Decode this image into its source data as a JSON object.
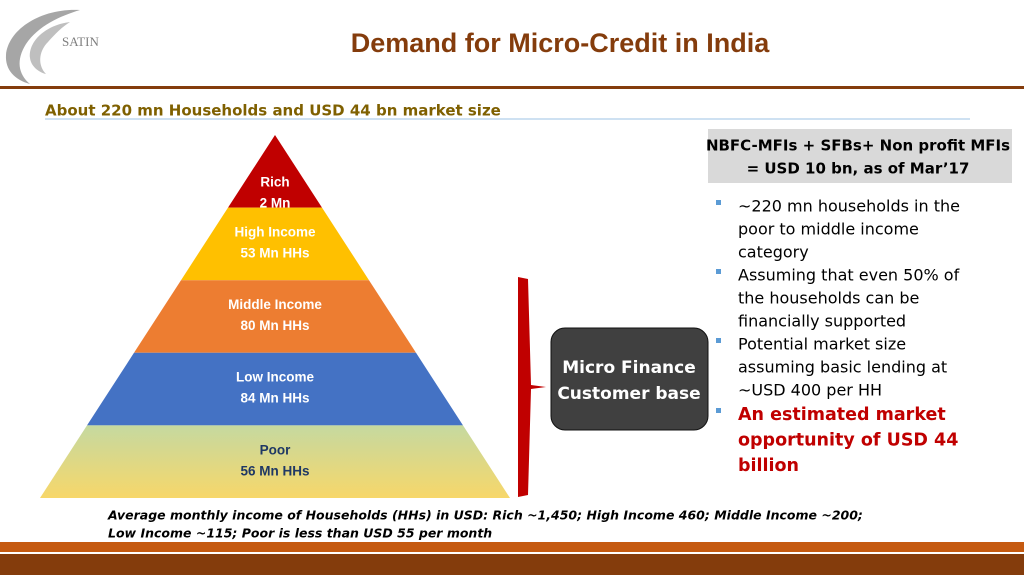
{
  "logo": "SATIN",
  "title": "Demand for Micro-Credit in India",
  "subtitle": "About 220 mn Households and USD 44 bn market size",
  "pyramid": [
    {
      "label": "Rich",
      "value": "2 Mn"
    },
    {
      "label": "High Income",
      "value": "53 Mn HHs"
    },
    {
      "label": "Middle Income",
      "value": "80 Mn HHs"
    },
    {
      "label": "Low Income",
      "value": "84 Mn HHs"
    },
    {
      "label": "Poor",
      "value": "56 Mn HHs"
    }
  ],
  "center_box": [
    "Micro Finance",
    "Customer base"
  ],
  "info_box": [
    "NBFC-MFIs + SFBs+ Non profit MFIs",
    "= USD 10 bn, as of Mar’17"
  ],
  "bullets": [
    [
      "~220 mn households in the",
      "poor to middle income",
      "category"
    ],
    [
      "Assuming that even 50% of",
      "the households can be",
      "financially supported"
    ],
    [
      "Potential market size",
      "assuming basic lending at",
      "~USD 400 per HH"
    ],
    [
      "An estimated market",
      "opportunity of USD 44",
      "billion"
    ]
  ],
  "footnote": [
    "Average monthly income of Households (HHs) in USD: Rich ~1,450; High Income 460; Middle Income ~200;",
    "Low Income ~115; Poor is less than USD 55 per month"
  ]
}
